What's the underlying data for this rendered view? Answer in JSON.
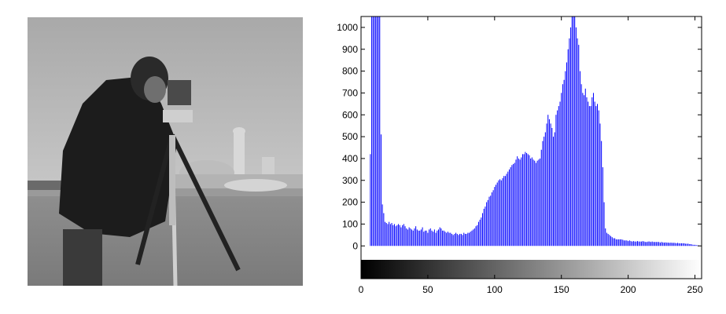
{
  "image": {
    "alt": "Grayscale photograph of a cameraman on a field",
    "description_icon": "cameraman-photo"
  },
  "chart_data": {
    "type": "bar",
    "title": "",
    "xlabel": "",
    "ylabel": "",
    "xlim": [
      0,
      255
    ],
    "ylim": [
      -150,
      1050
    ],
    "xticks": [
      0,
      50,
      100,
      150,
      200,
      250
    ],
    "yticks": [
      0,
      100,
      200,
      300,
      400,
      500,
      600,
      700,
      800,
      900,
      1000
    ],
    "ytick_labels": [
      "0",
      "100",
      "200",
      "300",
      "400",
      "500",
      "600",
      "700",
      "800",
      "900",
      "1000"
    ],
    "xtick_labels": [
      "0",
      "50",
      "100",
      "150",
      "200",
      "250"
    ],
    "bar_color": "#0000ff",
    "colorbar": "grayscale 0 to 255 along x-axis below zero",
    "grid": false,
    "series": [
      {
        "values": [
          0,
          0,
          0,
          0,
          0,
          0,
          0,
          420,
          1050,
          1050,
          1050,
          1050,
          1050,
          1050,
          1050,
          510,
          190,
          150,
          110,
          105,
          100,
          110,
          100,
          105,
          95,
          100,
          90,
          95,
          100,
          95,
          85,
          95,
          100,
          90,
          80,
          75,
          85,
          80,
          75,
          70,
          80,
          90,
          75,
          70,
          70,
          75,
          85,
          65,
          70,
          70,
          60,
          75,
          80,
          70,
          65,
          75,
          60,
          70,
          75,
          85,
          80,
          70,
          70,
          65,
          60,
          65,
          60,
          60,
          55,
          50,
          55,
          60,
          55,
          50,
          55,
          55,
          50,
          60,
          55,
          55,
          60,
          60,
          65,
          70,
          75,
          80,
          90,
          95,
          110,
          120,
          130,
          150,
          170,
          180,
          200,
          210,
          225,
          230,
          245,
          255,
          270,
          280,
          290,
          300,
          305,
          300,
          310,
          320,
          320,
          330,
          340,
          350,
          360,
          370,
          375,
          380,
          395,
          410,
          400,
          395,
          405,
          420,
          420,
          430,
          425,
          420,
          415,
          400,
          405,
          395,
          390,
          380,
          390,
          395,
          400,
          440,
          480,
          500,
          520,
          560,
          600,
          580,
          560,
          540,
          500,
          520,
          600,
          620,
          640,
          660,
          700,
          740,
          760,
          800,
          840,
          900,
          950,
          1000,
          1050,
          1050,
          1050,
          1000,
          950,
          920,
          800,
          740,
          700,
          690,
          720,
          680,
          660,
          640,
          640,
          680,
          700,
          660,
          640,
          650,
          620,
          560,
          480,
          360,
          200,
          80,
          60,
          55,
          50,
          45,
          40,
          35,
          35,
          30,
          30,
          30,
          30,
          30,
          28,
          25,
          25,
          25,
          22,
          25,
          22,
          20,
          22,
          20,
          20,
          22,
          20,
          20,
          20,
          22,
          20,
          18,
          18,
          20,
          20,
          18,
          20,
          18,
          18,
          18,
          18,
          18,
          15,
          18,
          16,
          15,
          16,
          15,
          15,
          14,
          15,
          14,
          14,
          14,
          12,
          14,
          12,
          12,
          12,
          12,
          12,
          10,
          10,
          10,
          8,
          8,
          6,
          5,
          5,
          4,
          3,
          2,
          1,
          0,
          0,
          0,
          0,
          0,
          0
        ]
      }
    ]
  }
}
